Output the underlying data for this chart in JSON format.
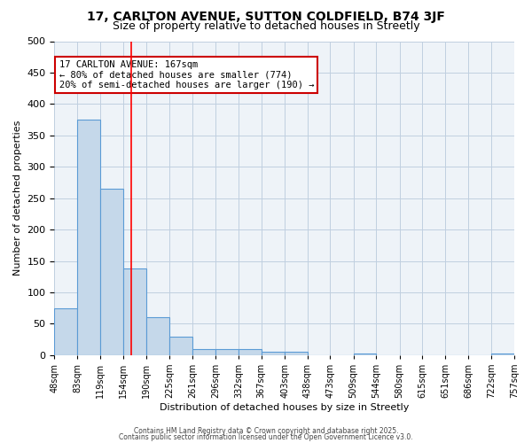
{
  "title_line1": "17, CARLTON AVENUE, SUTTON COLDFIELD, B74 3JF",
  "title_line2": "Size of property relative to detached houses in Streetly",
  "xlabel": "Distribution of detached houses by size in Streetly",
  "ylabel": "Number of detached properties",
  "bin_labels": [
    "48sqm",
    "83sqm",
    "119sqm",
    "154sqm",
    "190sqm",
    "225sqm",
    "261sqm",
    "296sqm",
    "332sqm",
    "367sqm",
    "403sqm",
    "438sqm",
    "473sqm",
    "509sqm",
    "544sqm",
    "580sqm",
    "615sqm",
    "651sqm",
    "686sqm",
    "722sqm",
    "757sqm"
  ],
  "bin_edges": [
    48,
    83,
    119,
    154,
    190,
    225,
    261,
    296,
    332,
    367,
    403,
    438,
    473,
    509,
    544,
    580,
    615,
    651,
    686,
    722,
    757
  ],
  "bar_heights": [
    75,
    375,
    265,
    138,
    60,
    30,
    10,
    10,
    10,
    5,
    5,
    0,
    0,
    3,
    0,
    0,
    0,
    0,
    0,
    3
  ],
  "bar_color": "#c5d8ea",
  "bar_edge_color": "#5b9bd5",
  "grid_color": "#c0cfe0",
  "background_color": "#eef3f8",
  "red_line_x": 167,
  "annotation_text": "17 CARLTON AVENUE: 167sqm\n← 80% of detached houses are smaller (774)\n20% of semi-detached houses are larger (190) →",
  "annotation_box_color": "#ffffff",
  "annotation_box_edge": "#cc0000",
  "ylim": [
    0,
    500
  ],
  "yticks": [
    0,
    50,
    100,
    150,
    200,
    250,
    300,
    350,
    400,
    450,
    500
  ],
  "footer_line1": "Contains HM Land Registry data © Crown copyright and database right 2025.",
  "footer_line2": "Contains public sector information licensed under the Open Government Licence v3.0."
}
